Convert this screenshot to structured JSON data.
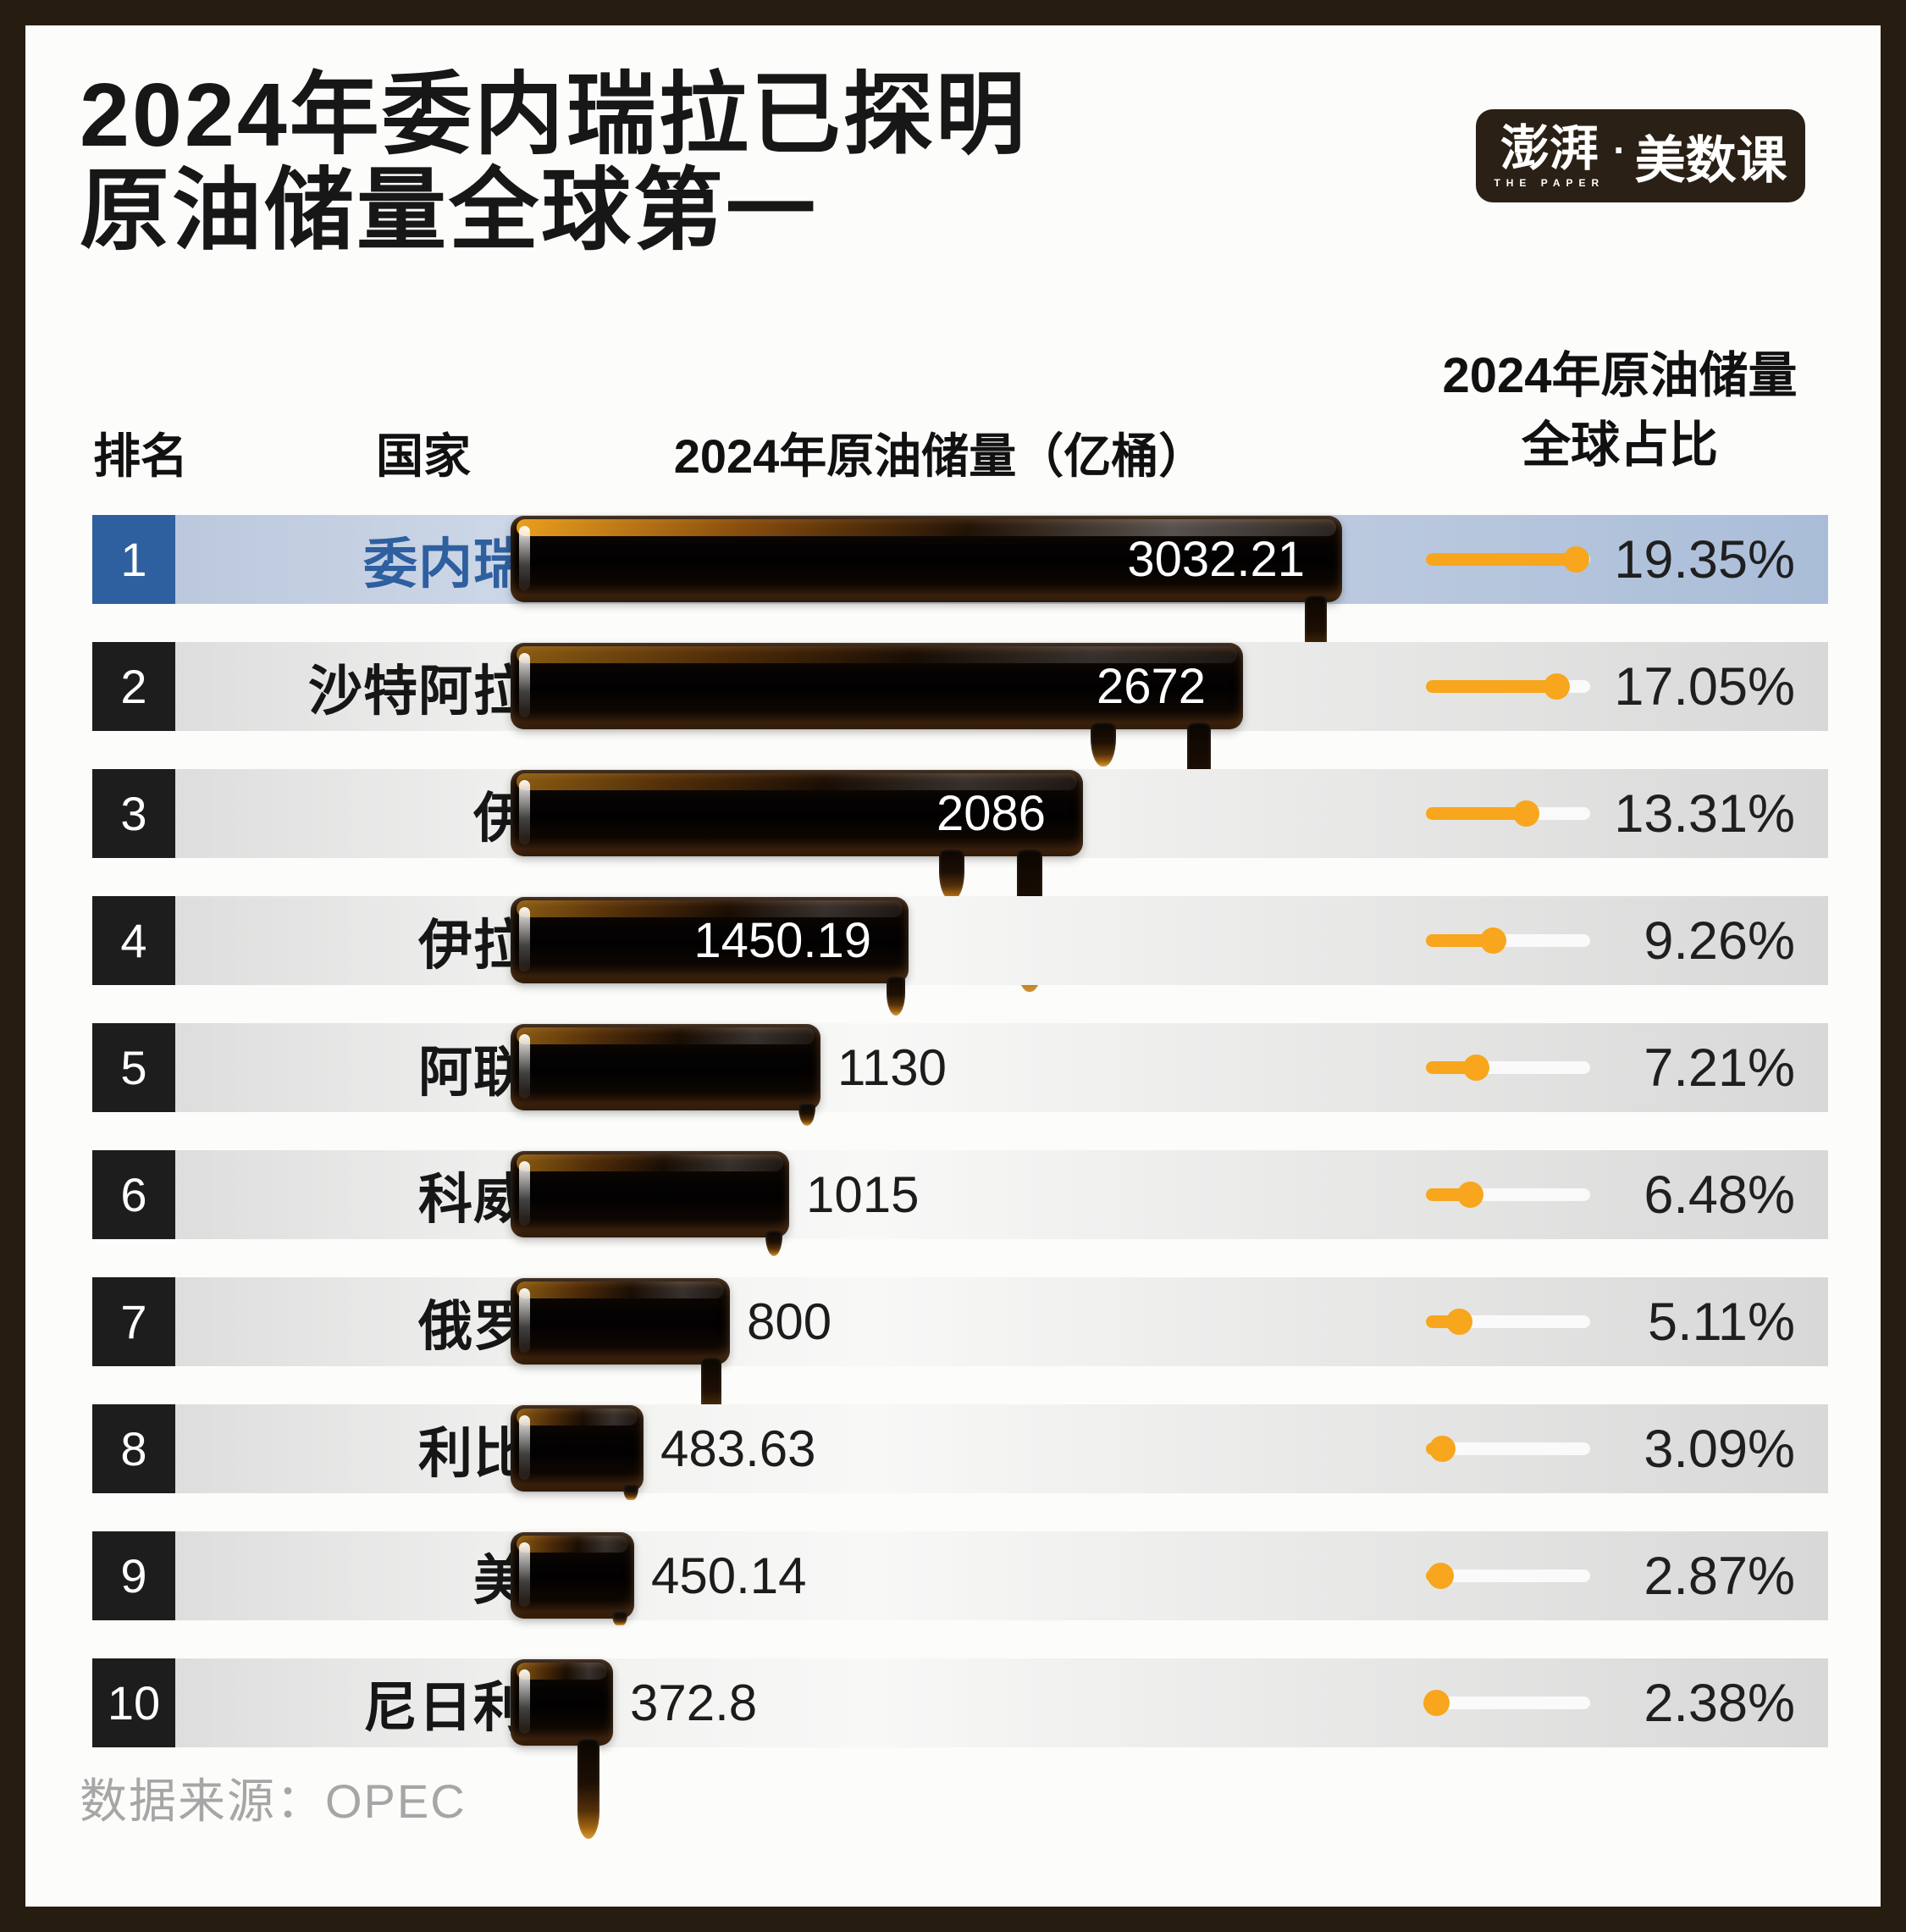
{
  "title": {
    "line1": "2024年委内瑞拉已探明",
    "line2": "原油储量全球第一"
  },
  "logo": {
    "cn_main": "澎湃",
    "en_sub": "THE PAPER",
    "separator": "·",
    "cn_suffix": "美数课"
  },
  "headers": {
    "rank": "排名",
    "country": "国家",
    "reserves": "2024年原油储量（亿桶）",
    "share_line1": "2024年原油储量",
    "share_line2": "全球占比"
  },
  "footer": {
    "source_label": "数据来源：OPEC"
  },
  "colors": {
    "frame": "#271c10",
    "page_bg": "#fcfcfa",
    "highlight_blue": "#2e5f9f",
    "rank_box_dark": "#1d1d1d",
    "lollipop_orange": "#f7a61d",
    "footer_gray": "#a6a6a6"
  },
  "chart_data": {
    "type": "bar",
    "orientation": "horizontal",
    "title": "2024年委内瑞拉已探明原油储量全球第一",
    "categories": [
      "委内瑞拉",
      "沙特阿拉伯",
      "伊朗",
      "伊拉克",
      "阿联酋",
      "科威特",
      "俄罗斯",
      "利比亚",
      "美国",
      "尼日利亚"
    ],
    "ranks": [
      "1",
      "2",
      "3",
      "4",
      "5",
      "6",
      "7",
      "8",
      "9",
      "10"
    ],
    "series": [
      {
        "name": "2024年原油储量（亿桶）",
        "values": [
          3032.21,
          2672,
          2086,
          1450.19,
          1130,
          1015,
          800,
          483.63,
          450.14,
          372.8
        ],
        "labels": [
          "3032.21",
          "2672",
          "2086",
          "1450.19",
          "1130",
          "1015",
          "800",
          "483.63",
          "450.14",
          "372.8"
        ]
      },
      {
        "name": "2024年原油储量全球占比",
        "unit": "%",
        "values": [
          19.35,
          17.05,
          13.31,
          9.26,
          7.21,
          6.48,
          5.11,
          3.09,
          2.87,
          2.38
        ],
        "labels": [
          "19.35%",
          "17.05%",
          "13.31%",
          "9.26%",
          "7.21%",
          "6.48%",
          "5.11%",
          "3.09%",
          "2.87%",
          "2.38%"
        ]
      }
    ],
    "xmax": 3032.21,
    "share_axis_max": 20,
    "highlighted_rank": "1",
    "value_label_inside_threshold": 1400,
    "grid": false,
    "legend_position": "none"
  }
}
